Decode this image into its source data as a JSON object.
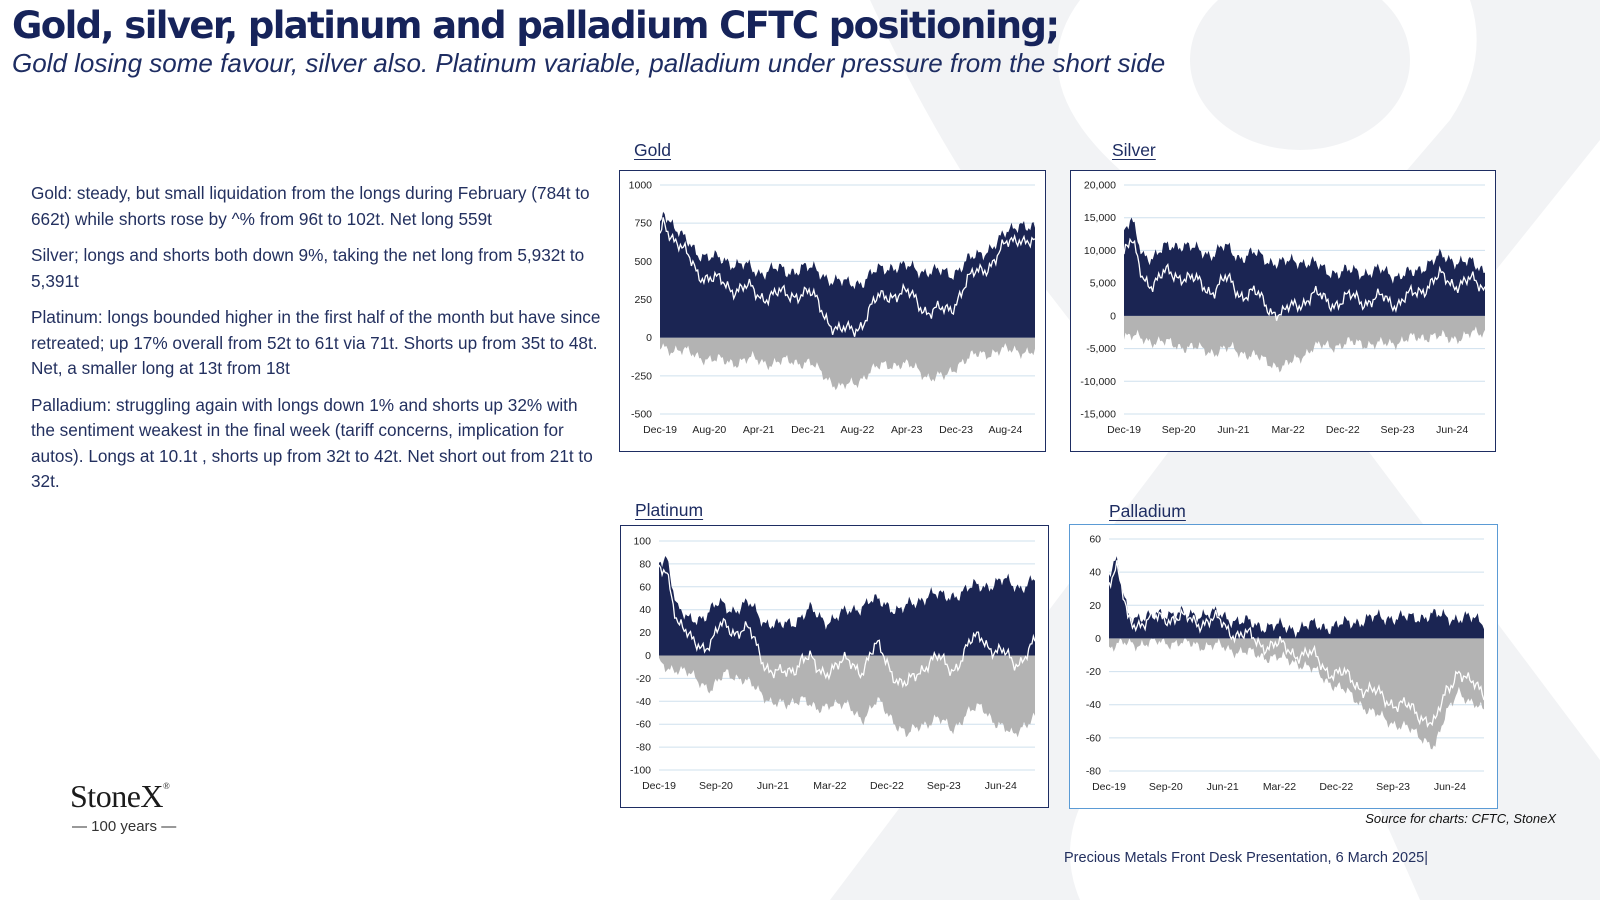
{
  "title": "Gold, silver, platinum and palladium CFTC positioning;",
  "subtitle": "Gold losing some  favour, silver also.  Platinum variable, palladium under pressure from the short side",
  "commentary": [
    {
      "label": "Gold",
      "text": ": steady, but small liquidation from the longs during February (784t to 662t) while shorts rose by ^% from 96t to 102t.  Net long 559t"
    },
    {
      "label": "Silver;",
      "text": " longs and shorts both down 9%, taking the net long from 5,932t to 5,391t"
    },
    {
      "label": "Platinum:",
      "text": " longs bounded higher in the first half of the month but have since retreated; up 17% overall from 52t to 61t via 71t.  Shorts up from 35t to 48t.  Net, a smaller long at 13t from 18t"
    },
    {
      "label": "Palladium:",
      "text": " struggling again with longs down 1% and shorts up 32% with the sentiment weakest in the final week (tariff concerns, implication for autos).  Longs at 10.1t , shorts up from 32t to 42t. Net short out from 21t to 32t."
    }
  ],
  "brand": {
    "name": "StoneX",
    "mark": "®",
    "tagline": "— 100 years —"
  },
  "source": "Source for charts: CFTC, StoneX",
  "footer": "Precious Metals Front Desk Presentation, 6 March 2025|",
  "colors": {
    "longs": "#1b2553",
    "shorts": "#b3b3b3",
    "net": "#ffffff",
    "grid": "#cfe0ee",
    "title": "#16235a"
  },
  "chart_data": [
    {
      "type": "area",
      "title": "Gold",
      "series": [],
      "ylim": [
        -500,
        1000
      ],
      "yticks": [
        "1000",
        "750",
        "500",
        "250",
        "0",
        "-250",
        "-500"
      ],
      "xticks": [
        "Dec-19",
        "Aug-20",
        "Apr-21",
        "Dec-21",
        "Aug-22",
        "Apr-23",
        "Dec-23",
        "Aug-24"
      ],
      "longs_anchor": [
        [
          0,
          720
        ],
        [
          0.01,
          840
        ],
        [
          0.03,
          760
        ],
        [
          0.06,
          650
        ],
        [
          0.1,
          560
        ],
        [
          0.14,
          520
        ],
        [
          0.18,
          500
        ],
        [
          0.22,
          480
        ],
        [
          0.26,
          420
        ],
        [
          0.3,
          460
        ],
        [
          0.34,
          420
        ],
        [
          0.38,
          470
        ],
        [
          0.42,
          430
        ],
        [
          0.46,
          380
        ],
        [
          0.5,
          350
        ],
        [
          0.54,
          370
        ],
        [
          0.58,
          440
        ],
        [
          0.62,
          470
        ],
        [
          0.66,
          460
        ],
        [
          0.7,
          440
        ],
        [
          0.74,
          430
        ],
        [
          0.78,
          420
        ],
        [
          0.82,
          500
        ],
        [
          0.86,
          560
        ],
        [
          0.9,
          620
        ],
        [
          0.93,
          700
        ],
        [
          0.96,
          760
        ],
        [
          0.98,
          720
        ],
        [
          1,
          700
        ]
      ],
      "shorts_anchor": [
        [
          0,
          -60
        ],
        [
          0.05,
          -80
        ],
        [
          0.1,
          -120
        ],
        [
          0.15,
          -150
        ],
        [
          0.2,
          -160
        ],
        [
          0.25,
          -140
        ],
        [
          0.3,
          -170
        ],
        [
          0.35,
          -150
        ],
        [
          0.4,
          -170
        ],
        [
          0.44,
          -250
        ],
        [
          0.48,
          -330
        ],
        [
          0.52,
          -300
        ],
        [
          0.56,
          -220
        ],
        [
          0.6,
          -180
        ],
        [
          0.64,
          -170
        ],
        [
          0.68,
          -200
        ],
        [
          0.72,
          -260
        ],
        [
          0.76,
          -260
        ],
        [
          0.8,
          -160
        ],
        [
          0.85,
          -110
        ],
        [
          0.9,
          -90
        ],
        [
          0.95,
          -80
        ],
        [
          1,
          -100
        ]
      ]
    },
    {
      "type": "area",
      "title": "Silver",
      "series": [],
      "ylim": [
        -15000,
        20000
      ],
      "yticks": [
        "20,000",
        "15,000",
        "10,000",
        "5,000",
        "0",
        "-5,000",
        "-10,000",
        "-15,000"
      ],
      "xticks": [
        "Dec-19",
        "Sep-20",
        "Jun-21",
        "Mar-22",
        "Dec-22",
        "Sep-23",
        "Jun-24"
      ],
      "longs_anchor": [
        [
          0,
          13000
        ],
        [
          0.02,
          14500
        ],
        [
          0.05,
          9500
        ],
        [
          0.08,
          9000
        ],
        [
          0.12,
          10500
        ],
        [
          0.16,
          11000
        ],
        [
          0.2,
          10000
        ],
        [
          0.24,
          9500
        ],
        [
          0.28,
          10500
        ],
        [
          0.32,
          9000
        ],
        [
          0.36,
          9500
        ],
        [
          0.4,
          8500
        ],
        [
          0.44,
          8000
        ],
        [
          0.48,
          8500
        ],
        [
          0.52,
          8000
        ],
        [
          0.56,
          7000
        ],
        [
          0.6,
          6500
        ],
        [
          0.64,
          7000
        ],
        [
          0.68,
          6500
        ],
        [
          0.72,
          7000
        ],
        [
          0.76,
          6000
        ],
        [
          0.8,
          6500
        ],
        [
          0.84,
          8000
        ],
        [
          0.88,
          9000
        ],
        [
          0.92,
          8500
        ],
        [
          0.96,
          8000
        ],
        [
          1,
          7000
        ]
      ],
      "shorts_anchor": [
        [
          0,
          -3000
        ],
        [
          0.05,
          -3500
        ],
        [
          0.1,
          -4000
        ],
        [
          0.15,
          -4500
        ],
        [
          0.2,
          -5000
        ],
        [
          0.25,
          -5500
        ],
        [
          0.3,
          -5000
        ],
        [
          0.35,
          -6000
        ],
        [
          0.4,
          -7000
        ],
        [
          0.44,
          -8000
        ],
        [
          0.48,
          -6500
        ],
        [
          0.52,
          -5000
        ],
        [
          0.56,
          -4500
        ],
        [
          0.6,
          -4500
        ],
        [
          0.65,
          -4000
        ],
        [
          0.7,
          -4500
        ],
        [
          0.75,
          -4000
        ],
        [
          0.8,
          -3500
        ],
        [
          0.85,
          -3000
        ],
        [
          0.9,
          -3500
        ],
        [
          0.95,
          -3000
        ],
        [
          1,
          -2500
        ]
      ]
    },
    {
      "type": "area",
      "title": "Platinum",
      "series": [],
      "ylim": [
        -100,
        100
      ],
      "yticks": [
        "100",
        "80",
        "60",
        "40",
        "20",
        "0",
        "-20",
        "-40",
        "-60",
        "-80",
        "-100"
      ],
      "xticks": [
        "Dec-19",
        "Sep-20",
        "Jun-21",
        "Mar-22",
        "Dec-22",
        "Sep-23",
        "Jun-24"
      ],
      "longs_anchor": [
        [
          0,
          80
        ],
        [
          0.02,
          88
        ],
        [
          0.05,
          40
        ],
        [
          0.08,
          30
        ],
        [
          0.12,
          35
        ],
        [
          0.16,
          45
        ],
        [
          0.2,
          40
        ],
        [
          0.24,
          45
        ],
        [
          0.28,
          30
        ],
        [
          0.32,
          25
        ],
        [
          0.36,
          30
        ],
        [
          0.4,
          40
        ],
        [
          0.44,
          30
        ],
        [
          0.48,
          35
        ],
        [
          0.52,
          40
        ],
        [
          0.56,
          48
        ],
        [
          0.6,
          45
        ],
        [
          0.64,
          40
        ],
        [
          0.68,
          45
        ],
        [
          0.72,
          55
        ],
        [
          0.76,
          50
        ],
        [
          0.8,
          55
        ],
        [
          0.84,
          60
        ],
        [
          0.88,
          62
        ],
        [
          0.92,
          65
        ],
        [
          0.96,
          60
        ],
        [
          1,
          65
        ]
      ],
      "shorts_anchor": [
        [
          0,
          -8
        ],
        [
          0.05,
          -12
        ],
        [
          0.1,
          -20
        ],
        [
          0.14,
          -30
        ],
        [
          0.18,
          -15
        ],
        [
          0.22,
          -20
        ],
        [
          0.26,
          -30
        ],
        [
          0.3,
          -40
        ],
        [
          0.34,
          -45
        ],
        [
          0.38,
          -35
        ],
        [
          0.42,
          -50
        ],
        [
          0.46,
          -40
        ],
        [
          0.5,
          -45
        ],
        [
          0.54,
          -55
        ],
        [
          0.58,
          -40
        ],
        [
          0.62,
          -55
        ],
        [
          0.66,
          -70
        ],
        [
          0.7,
          -60
        ],
        [
          0.74,
          -55
        ],
        [
          0.78,
          -65
        ],
        [
          0.82,
          -50
        ],
        [
          0.86,
          -45
        ],
        [
          0.9,
          -60
        ],
        [
          0.94,
          -70
        ],
        [
          0.97,
          -60
        ],
        [
          1,
          -55
        ]
      ]
    },
    {
      "type": "area",
      "title": "Palladium",
      "series": [],
      "ylim": [
        -80,
        60
      ],
      "yticks": [
        "60",
        "40",
        "20",
        "0",
        "-20",
        "-40",
        "-60",
        "-80"
      ],
      "xticks": [
        "Dec-19",
        "Sep-20",
        "Jun-21",
        "Mar-22",
        "Dec-22",
        "Sep-23",
        "Jun-24"
      ],
      "longs_anchor": [
        [
          0,
          40
        ],
        [
          0.02,
          46
        ],
        [
          0.05,
          15
        ],
        [
          0.1,
          12
        ],
        [
          0.15,
          16
        ],
        [
          0.2,
          14
        ],
        [
          0.25,
          15
        ],
        [
          0.3,
          14
        ],
        [
          0.35,
          10
        ],
        [
          0.4,
          8
        ],
        [
          0.45,
          7
        ],
        [
          0.5,
          6
        ],
        [
          0.55,
          8
        ],
        [
          0.6,
          7
        ],
        [
          0.65,
          10
        ],
        [
          0.7,
          12
        ],
        [
          0.75,
          13
        ],
        [
          0.8,
          12
        ],
        [
          0.85,
          14
        ],
        [
          0.9,
          13
        ],
        [
          0.95,
          12
        ],
        [
          1,
          11
        ]
      ],
      "shorts_anchor": [
        [
          0,
          -5
        ],
        [
          0.05,
          -3
        ],
        [
          0.1,
          -3
        ],
        [
          0.15,
          -2
        ],
        [
          0.2,
          -3
        ],
        [
          0.25,
          -4
        ],
        [
          0.3,
          -5
        ],
        [
          0.35,
          -8
        ],
        [
          0.4,
          -10
        ],
        [
          0.45,
          -12
        ],
        [
          0.5,
          -14
        ],
        [
          0.55,
          -20
        ],
        [
          0.6,
          -28
        ],
        [
          0.65,
          -35
        ],
        [
          0.7,
          -45
        ],
        [
          0.75,
          -50
        ],
        [
          0.8,
          -55
        ],
        [
          0.84,
          -60
        ],
        [
          0.87,
          -66
        ],
        [
          0.9,
          -45
        ],
        [
          0.93,
          -30
        ],
        [
          0.96,
          -40
        ],
        [
          1,
          -42
        ]
      ]
    }
  ]
}
